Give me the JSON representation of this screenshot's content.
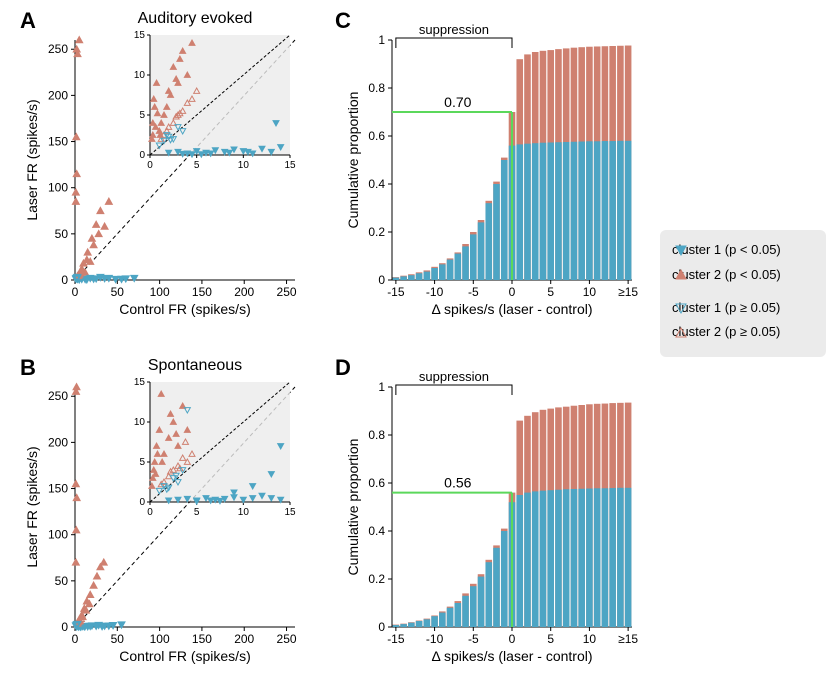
{
  "colors": {
    "cluster1": "#4da5c4",
    "cluster2": "#cf8070",
    "green": "#5bd85b",
    "inset_bg": "#ebebeb",
    "axis": "#000000",
    "text": "#000000"
  },
  "panels": {
    "A": {
      "label": "A",
      "title": "Auditory evoked"
    },
    "B": {
      "label": "B",
      "title": "Spontaneous"
    },
    "C": {
      "label": "C"
    },
    "D": {
      "label": "D"
    }
  },
  "scatter": {
    "xlabel": "Control FR (spikes/s)",
    "ylabel": "Laser FR (spikes/s)",
    "xlim": [
      0,
      260
    ],
    "ylim": [
      0,
      260
    ],
    "ticks": [
      0,
      50,
      100,
      150,
      200,
      250
    ],
    "inset": {
      "xlim": [
        0,
        15
      ],
      "ylim": [
        0,
        15
      ],
      "ticks": [
        0,
        5,
        10,
        15
      ]
    },
    "A_points_c1_sig": [
      [
        3,
        1
      ],
      [
        5,
        0.5
      ],
      [
        8,
        1
      ],
      [
        12,
        0.8
      ],
      [
        18,
        2
      ],
      [
        25,
        1.5
      ],
      [
        30,
        3
      ],
      [
        40,
        2
      ],
      [
        55,
        1
      ],
      [
        70,
        2
      ],
      [
        14,
        0.5
      ],
      [
        22,
        1.2
      ],
      [
        35,
        1.8
      ],
      [
        48,
        0.9
      ],
      [
        60,
        1.5
      ]
    ],
    "A_points_c2_sig": [
      [
        1,
        95
      ],
      [
        2,
        115
      ],
      [
        1.5,
        155
      ],
      [
        3,
        245
      ],
      [
        2,
        250
      ],
      [
        4,
        3
      ],
      [
        8,
        12
      ],
      [
        10,
        18
      ],
      [
        15,
        30
      ],
      [
        20,
        45
      ],
      [
        25,
        60
      ],
      [
        30,
        75
      ],
      [
        35,
        58
      ],
      [
        40,
        85
      ],
      [
        12,
        8
      ],
      [
        18,
        20
      ],
      [
        6,
        5
      ],
      [
        9,
        10
      ],
      [
        14,
        22
      ],
      [
        22,
        38
      ],
      [
        28,
        50
      ],
      [
        5,
        260
      ],
      [
        1,
        85
      ]
    ],
    "A_points_c1_ns": [
      [
        1,
        1.2
      ],
      [
        1.5,
        2
      ],
      [
        2,
        1.8
      ],
      [
        3,
        2.5
      ],
      [
        2.5,
        3
      ]
    ],
    "A_points_c2_ns": [
      [
        4,
        5
      ],
      [
        6,
        7.5
      ],
      [
        5,
        6
      ],
      [
        3,
        4.5
      ],
      [
        7,
        8.5
      ],
      [
        8,
        10
      ]
    ],
    "B_points_c1_sig": [
      [
        2,
        0.4
      ],
      [
        4,
        0.3
      ],
      [
        6,
        0.5
      ],
      [
        9,
        0.8
      ],
      [
        12,
        1
      ],
      [
        15,
        0.6
      ],
      [
        20,
        1.5
      ],
      [
        28,
        2
      ],
      [
        35,
        1.2
      ],
      [
        45,
        1.8
      ],
      [
        55,
        2.5
      ],
      [
        7,
        0.2
      ],
      [
        11,
        0.4
      ],
      [
        18,
        0.9
      ],
      [
        25,
        1.1
      ],
      [
        32,
        0.7
      ],
      [
        40,
        1.3
      ]
    ],
    "B_points_c2_sig": [
      [
        1,
        70
      ],
      [
        1.5,
        105
      ],
      [
        2,
        140
      ],
      [
        1,
        155
      ],
      [
        1.2,
        255
      ],
      [
        1.8,
        260
      ],
      [
        3,
        5
      ],
      [
        5,
        8
      ],
      [
        8,
        13
      ],
      [
        11,
        20
      ],
      [
        14,
        28
      ],
      [
        18,
        35
      ],
      [
        22,
        45
      ],
      [
        26,
        55
      ],
      [
        30,
        65
      ],
      [
        34,
        70
      ],
      [
        6,
        6
      ],
      [
        9,
        11
      ],
      [
        13,
        18
      ],
      [
        17,
        25
      ],
      [
        4,
        4
      ]
    ],
    "B_points_c1_ns": [
      [
        1,
        1.3
      ],
      [
        2,
        2.2
      ],
      [
        3,
        3.1
      ],
      [
        2.5,
        2.8
      ],
      [
        1.8,
        2
      ]
    ],
    "B_points_c2_ns": [
      [
        3,
        4
      ],
      [
        5,
        6.5
      ],
      [
        4,
        5.5
      ],
      [
        6,
        7
      ],
      [
        7,
        9
      ]
    ],
    "A_inset_c1_sig": [
      [
        2,
        0.3
      ],
      [
        3,
        0.4
      ],
      [
        4,
        0.2
      ],
      [
        5,
        0.5
      ],
      [
        6,
        0.3
      ],
      [
        7,
        0.6
      ],
      [
        8,
        0.4
      ],
      [
        9,
        0.7
      ],
      [
        10,
        0.5
      ],
      [
        11,
        0.2
      ],
      [
        12,
        0.8
      ],
      [
        13,
        0.4
      ],
      [
        14,
        1.0
      ],
      [
        13.5,
        4.0
      ],
      [
        5.5,
        0.1
      ],
      [
        6.5,
        0.2
      ],
      [
        8.5,
        0.3
      ],
      [
        10.5,
        0.4
      ],
      [
        4.5,
        0.1
      ],
      [
        3.5,
        0.15
      ]
    ],
    "A_inset_c2_sig": [
      [
        0.2,
        2
      ],
      [
        0.3,
        4
      ],
      [
        0.5,
        6
      ],
      [
        0.7,
        9
      ],
      [
        0.4,
        7
      ],
      [
        1,
        3
      ],
      [
        1.5,
        5
      ],
      [
        2,
        8
      ],
      [
        2.5,
        11
      ],
      [
        3,
        9
      ],
      [
        3.5,
        13
      ],
      [
        4,
        10
      ],
      [
        1.2,
        4
      ],
      [
        1.8,
        6
      ],
      [
        2.2,
        7.5
      ],
      [
        2.8,
        9.5
      ],
      [
        0.6,
        3.5
      ],
      [
        0.8,
        5.2
      ],
      [
        1.1,
        2.5
      ],
      [
        0.3,
        2.5
      ],
      [
        3.2,
        12
      ],
      [
        4.5,
        14
      ]
    ],
    "A_inset_c1_ns": [
      [
        1,
        1.2
      ],
      [
        1.5,
        1.8
      ],
      [
        2,
        2.3
      ],
      [
        2.5,
        2
      ],
      [
        3,
        3.5
      ],
      [
        3.5,
        3
      ],
      [
        1.8,
        2.5
      ],
      [
        2.2,
        1.9
      ]
    ],
    "A_inset_c2_ns": [
      [
        1.5,
        2.5
      ],
      [
        2,
        3.5
      ],
      [
        2.5,
        4
      ],
      [
        3,
        5
      ],
      [
        3.5,
        5.5
      ],
      [
        4,
        6.5
      ],
      [
        4.5,
        7
      ],
      [
        5,
        8
      ],
      [
        2.8,
        4.8
      ],
      [
        3.2,
        5.2
      ],
      [
        1.2,
        2
      ],
      [
        1.8,
        3
      ]
    ],
    "B_inset_c1_sig": [
      [
        2,
        0.2
      ],
      [
        3,
        0.3
      ],
      [
        4,
        0.4
      ],
      [
        5,
        0.2
      ],
      [
        6,
        0.5
      ],
      [
        7,
        0.3
      ],
      [
        8,
        0.4
      ],
      [
        9,
        0.6
      ],
      [
        10,
        0.3
      ],
      [
        11,
        0.5
      ],
      [
        12,
        0.8
      ],
      [
        13,
        0.5
      ],
      [
        14,
        0.3
      ],
      [
        14,
        7
      ],
      [
        13,
        3.5
      ],
      [
        11,
        2
      ],
      [
        9,
        1.2
      ],
      [
        5,
        0.1
      ],
      [
        6.5,
        0.2
      ],
      [
        7.5,
        0.15
      ]
    ],
    "B_inset_c2_sig": [
      [
        0.3,
        3
      ],
      [
        0.5,
        5
      ],
      [
        0.7,
        7
      ],
      [
        1,
        9
      ],
      [
        1.2,
        13.5
      ],
      [
        1.5,
        6
      ],
      [
        2,
        8
      ],
      [
        2.5,
        10
      ],
      [
        3,
        7
      ],
      [
        3.5,
        12
      ],
      [
        4,
        9
      ],
      [
        0.4,
        4
      ],
      [
        0.8,
        6
      ],
      [
        1.3,
        5
      ],
      [
        2.2,
        11
      ],
      [
        2.8,
        8.5
      ],
      [
        0.2,
        2
      ],
      [
        0.6,
        3.5
      ]
    ],
    "B_inset_c1_ns": [
      [
        1,
        1.4
      ],
      [
        1.5,
        2
      ],
      [
        2,
        1.8
      ],
      [
        2.5,
        3
      ],
      [
        3,
        2.5
      ],
      [
        3.5,
        4
      ],
      [
        2.8,
        3.3
      ],
      [
        1.8,
        1.6
      ],
      [
        4,
        11.5
      ]
    ],
    "B_inset_c2_ns": [
      [
        1.5,
        2.5
      ],
      [
        2,
        3.2
      ],
      [
        2.5,
        4
      ],
      [
        3,
        4.5
      ],
      [
        3.5,
        5.5
      ],
      [
        4,
        5
      ],
      [
        4.5,
        6
      ],
      [
        1.2,
        2.2
      ],
      [
        2.2,
        3.8
      ],
      [
        3.2,
        4.2
      ],
      [
        3.8,
        7.5
      ]
    ]
  },
  "histogram": {
    "xlabel": "Δ spikes/s (laser - control)",
    "ylabel": "Cumulative proportion",
    "xlim": [
      -15.5,
      15.5
    ],
    "ylim": [
      0,
      1
    ],
    "xtick_vals": [
      -15,
      -10,
      -5,
      0,
      5,
      10,
      15
    ],
    "xtick_labels": [
      "-15",
      "-10",
      "-5",
      "0",
      "5",
      "10",
      "≥15"
    ],
    "ytick_vals": [
      0,
      0.2,
      0.4,
      0.6,
      0.8,
      1
    ],
    "suppression_label": "suppression",
    "bar_width": 0.85,
    "C_line_val": 0.7,
    "C_line_label": "0.70",
    "D_line_val": 0.56,
    "D_line_label": "0.56",
    "bins": [
      -15,
      -14,
      -13,
      -12,
      -11,
      -10,
      -9,
      -8,
      -7,
      -6,
      -5,
      -4,
      -3,
      -2,
      -1,
      0,
      1,
      2,
      3,
      4,
      5,
      6,
      7,
      8,
      9,
      10,
      11,
      12,
      13,
      14,
      15
    ],
    "C_c1": [
      0.01,
      0.015,
      0.02,
      0.028,
      0.035,
      0.05,
      0.065,
      0.085,
      0.11,
      0.14,
      0.19,
      0.24,
      0.32,
      0.4,
      0.5,
      0.56,
      0.565,
      0.568,
      0.57,
      0.572,
      0.573,
      0.574,
      0.575,
      0.576,
      0.577,
      0.578,
      0.578,
      0.579,
      0.579,
      0.58,
      0.58
    ],
    "C_c2": [
      0.012,
      0.018,
      0.024,
      0.032,
      0.04,
      0.055,
      0.07,
      0.09,
      0.115,
      0.15,
      0.2,
      0.25,
      0.33,
      0.41,
      0.51,
      0.7,
      0.92,
      0.94,
      0.95,
      0.955,
      0.958,
      0.962,
      0.965,
      0.968,
      0.97,
      0.972,
      0.973,
      0.974,
      0.975,
      0.976,
      0.977
    ],
    "D_c1": [
      0.008,
      0.012,
      0.018,
      0.025,
      0.032,
      0.045,
      0.06,
      0.08,
      0.1,
      0.13,
      0.17,
      0.21,
      0.27,
      0.33,
      0.4,
      0.52,
      0.55,
      0.56,
      0.565,
      0.568,
      0.57,
      0.572,
      0.574,
      0.575,
      0.576,
      0.577,
      0.578,
      0.578,
      0.579,
      0.58,
      0.58
    ],
    "D_c2": [
      0.01,
      0.014,
      0.02,
      0.027,
      0.035,
      0.048,
      0.065,
      0.085,
      0.108,
      0.14,
      0.18,
      0.22,
      0.28,
      0.34,
      0.41,
      0.56,
      0.86,
      0.88,
      0.895,
      0.905,
      0.91,
      0.915,
      0.918,
      0.922,
      0.925,
      0.928,
      0.93,
      0.931,
      0.933,
      0.934,
      0.935
    ]
  },
  "legend": {
    "items": [
      {
        "marker": "c1_sig",
        "label": "cluster 1 (p < 0.05)"
      },
      {
        "marker": "c2_sig",
        "label": "cluster 2 (p < 0.05)"
      },
      {
        "marker": "c1_ns",
        "label": "cluster 1 (p ≥ 0.05)"
      },
      {
        "marker": "c2_ns",
        "label": "cluster 2 (p ≥ 0.05)"
      }
    ]
  }
}
